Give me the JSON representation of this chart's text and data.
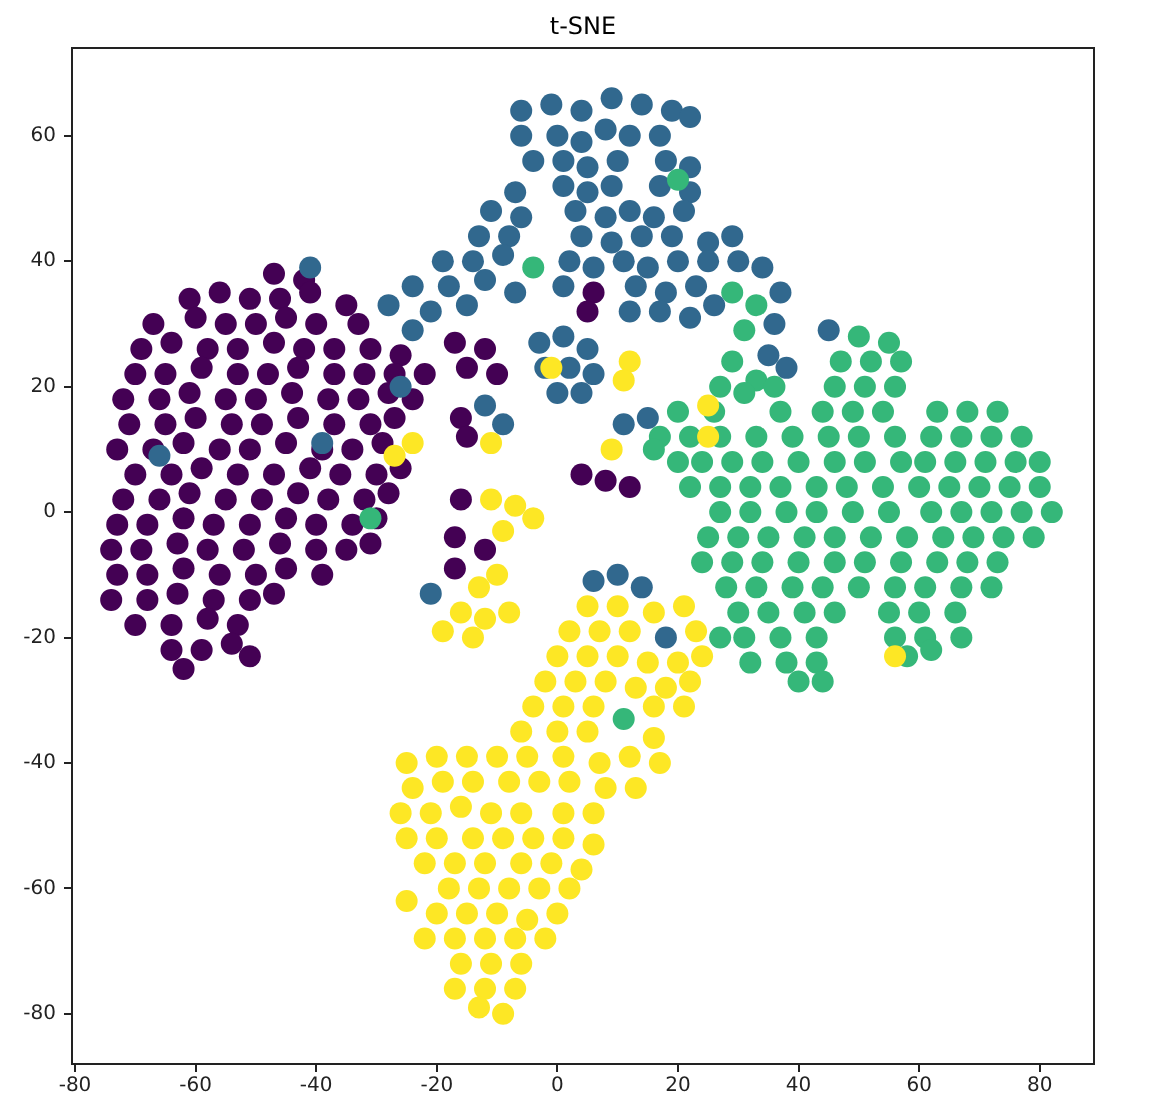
{
  "chart_data": {
    "type": "scatter",
    "title": "t-SNE",
    "marker": "circle",
    "grid": false,
    "legend": false,
    "xlim": [
      -80.5,
      89
    ],
    "ylim": [
      -88,
      74
    ],
    "xticks": [
      -80,
      -60,
      -40,
      -20,
      0,
      20,
      40,
      60,
      80
    ],
    "yticks": [
      -80,
      -60,
      -40,
      -20,
      0,
      20,
      40,
      60
    ],
    "series": [
      {
        "color": "#440154",
        "x": [
          -47,
          -42,
          -61,
          -56,
          -51,
          -46,
          -41,
          -35,
          -67,
          -60,
          -55,
          -50,
          -45,
          -40,
          -33,
          -69,
          -64,
          -58,
          -53,
          -47,
          -42,
          -37,
          -31,
          -26,
          -17,
          -12,
          -70,
          -65,
          -59,
          -53,
          -48,
          -43,
          -37,
          -32,
          -27,
          -22,
          -15,
          -10,
          -72,
          -66,
          -61,
          -55,
          -50,
          -44,
          -38,
          -33,
          -28,
          -24,
          -71,
          -65,
          -60,
          -54,
          -49,
          -43,
          -37,
          -31,
          -27,
          -73,
          -67,
          -62,
          -56,
          -51,
          -45,
          -39,
          -34,
          -29,
          -70,
          -64,
          -59,
          -53,
          -47,
          -41,
          -36,
          -30,
          -26,
          -72,
          -66,
          -61,
          -55,
          -49,
          -43,
          -38,
          -32,
          -28,
          -73,
          -68,
          -62,
          -57,
          -51,
          -45,
          -40,
          -34,
          -30,
          -74,
          -69,
          -63,
          -58,
          -52,
          -46,
          -40,
          -35,
          -31,
          -73,
          -68,
          -62,
          -56,
          -50,
          -45,
          -39,
          -74,
          -68,
          -63,
          -57,
          -51,
          -47,
          -70,
          -64,
          -58,
          -53,
          -64,
          -59,
          -54,
          -51,
          -62,
          -16,
          -15,
          -16,
          -17,
          -17,
          -12,
          4,
          8,
          12,
          6,
          5
        ],
        "values": [
          38,
          37,
          34,
          35,
          34,
          34,
          35,
          33,
          30,
          31,
          30,
          30,
          31,
          30,
          30,
          26,
          27,
          26,
          26,
          27,
          26,
          26,
          26,
          25,
          27,
          26,
          22,
          22,
          23,
          22,
          22,
          23,
          22,
          22,
          22,
          22,
          23,
          22,
          18,
          18,
          19,
          18,
          18,
          19,
          18,
          18,
          19,
          18,
          14,
          14,
          15,
          14,
          14,
          15,
          14,
          14,
          15,
          10,
          10,
          11,
          10,
          10,
          11,
          10,
          10,
          11,
          6,
          6,
          7,
          6,
          6,
          7,
          6,
          6,
          7,
          2,
          2,
          3,
          2,
          2,
          3,
          2,
          2,
          3,
          -2,
          -2,
          -1,
          -2,
          -2,
          -1,
          -2,
          -2,
          -1,
          -6,
          -6,
          -5,
          -6,
          -6,
          -5,
          -6,
          -6,
          -5,
          -10,
          -10,
          -9,
          -10,
          -10,
          -9,
          -10,
          -14,
          -14,
          -13,
          -14,
          -14,
          -13,
          -18,
          -18,
          -17,
          -18,
          -22,
          -22,
          -21,
          -23,
          -25,
          15,
          12,
          2,
          -4,
          -9,
          -6,
          6,
          5,
          4,
          35,
          32
        ]
      },
      {
        "color": "#31688e",
        "x": [
          -6,
          -1,
          4,
          9,
          14,
          19,
          22,
          -6,
          0,
          4,
          8,
          12,
          17,
          -4,
          1,
          5,
          10,
          18,
          22,
          -7,
          1,
          5,
          9,
          17,
          22,
          -11,
          -6,
          3,
          8,
          12,
          16,
          21,
          -13,
          -8,
          4,
          9,
          14,
          19,
          25,
          29,
          -19,
          -14,
          -9,
          2,
          6,
          11,
          15,
          20,
          25,
          30,
          34,
          -24,
          -18,
          -12,
          -7,
          1,
          13,
          18,
          23,
          37,
          -28,
          -21,
          -15,
          12,
          17,
          22,
          26,
          -24,
          -3,
          1,
          5,
          -2,
          2,
          6,
          0,
          4,
          36,
          35,
          38,
          -66,
          -12,
          -9,
          11,
          15,
          6,
          10,
          14,
          18,
          45,
          -41,
          -26,
          -39,
          -21
        ],
        "values": [
          64,
          65,
          64,
          66,
          65,
          64,
          63,
          60,
          60,
          59,
          61,
          60,
          60,
          56,
          56,
          55,
          56,
          56,
          55,
          51,
          52,
          51,
          52,
          52,
          51,
          48,
          47,
          48,
          47,
          48,
          47,
          48,
          44,
          44,
          44,
          43,
          44,
          44,
          43,
          44,
          40,
          40,
          41,
          40,
          39,
          40,
          39,
          40,
          40,
          40,
          39,
          36,
          36,
          37,
          35,
          36,
          36,
          35,
          36,
          35,
          33,
          32,
          33,
          32,
          32,
          31,
          33,
          29,
          27,
          28,
          26,
          23,
          23,
          22,
          19,
          19,
          30,
          25,
          23,
          9,
          17,
          14,
          14,
          15,
          -11,
          -10,
          -12,
          -20,
          29,
          39,
          20,
          11,
          -13
        ]
      },
      {
        "color": "#35b779",
        "x": [
          29,
          33,
          31,
          29,
          33,
          50,
          55,
          47,
          52,
          57,
          27,
          31,
          36,
          46,
          51,
          56,
          20,
          26,
          37,
          44,
          49,
          54,
          63,
          68,
          73,
          17,
          22,
          27,
          33,
          39,
          45,
          50,
          56,
          62,
          67,
          72,
          77,
          20,
          24,
          29,
          34,
          40,
          46,
          51,
          57,
          61,
          66,
          71,
          76,
          80,
          22,
          27,
          32,
          37,
          43,
          48,
          54,
          60,
          65,
          70,
          75,
          80,
          27,
          32,
          38,
          43,
          49,
          55,
          62,
          67,
          72,
          77,
          82,
          25,
          30,
          35,
          41,
          46,
          52,
          58,
          64,
          69,
          74,
          79,
          24,
          29,
          34,
          40,
          46,
          51,
          57,
          63,
          68,
          73,
          28,
          33,
          39,
          44,
          50,
          56,
          61,
          67,
          72,
          30,
          35,
          41,
          46,
          55,
          60,
          66,
          31,
          37,
          43,
          56,
          61,
          67,
          32,
          38,
          43,
          58,
          62,
          40,
          44,
          -4,
          -31,
          20,
          11,
          27,
          16
        ],
        "values": [
          35,
          33,
          29,
          24,
          21,
          28,
          27,
          24,
          24,
          24,
          20,
          19,
          20,
          20,
          20,
          20,
          16,
          16,
          16,
          16,
          16,
          16,
          16,
          16,
          16,
          12,
          12,
          12,
          12,
          12,
          12,
          12,
          12,
          12,
          12,
          12,
          12,
          8,
          8,
          8,
          8,
          8,
          8,
          8,
          8,
          8,
          8,
          8,
          8,
          8,
          4,
          4,
          4,
          4,
          4,
          4,
          4,
          4,
          4,
          4,
          4,
          4,
          0,
          0,
          0,
          0,
          0,
          0,
          0,
          0,
          0,
          0,
          0,
          -4,
          -4,
          -4,
          -4,
          -4,
          -4,
          -4,
          -4,
          -4,
          -4,
          -4,
          -8,
          -8,
          -8,
          -8,
          -8,
          -8,
          -8,
          -8,
          -8,
          -8,
          -12,
          -12,
          -12,
          -12,
          -12,
          -12,
          -12,
          -12,
          -12,
          -16,
          -16,
          -16,
          -16,
          -16,
          -16,
          -16,
          -20,
          -20,
          -20,
          -20,
          -20,
          -20,
          -24,
          -24,
          -24,
          -23,
          -22,
          -27,
          -27,
          39,
          -1,
          53,
          -33,
          -20,
          10
        ]
      },
      {
        "color": "#fde725",
        "x": [
          -24,
          -27,
          -11,
          -1,
          12,
          11,
          9,
          25,
          25,
          56,
          -11,
          -7,
          -4,
          -9,
          -13,
          -10,
          -16,
          -12,
          -8,
          -19,
          -14,
          5,
          10,
          16,
          21,
          2,
          7,
          12,
          23,
          0,
          5,
          10,
          15,
          20,
          24,
          -2,
          3,
          8,
          13,
          18,
          22,
          -4,
          1,
          6,
          16,
          21,
          -6,
          0,
          5,
          16,
          -25,
          -20,
          -15,
          -10,
          -5,
          1,
          7,
          12,
          17,
          -24,
          -19,
          -14,
          -8,
          -3,
          2,
          8,
          13,
          -26,
          -21,
          -16,
          -11,
          -6,
          1,
          6,
          -25,
          -20,
          -14,
          -9,
          -4,
          1,
          6,
          -22,
          -17,
          -12,
          -6,
          -1,
          4,
          -18,
          -13,
          -8,
          -3,
          2,
          -25,
          -20,
          -15,
          -10,
          -5,
          0,
          -22,
          -17,
          -12,
          -7,
          -2,
          -16,
          -11,
          -6,
          -17,
          -12,
          -7,
          -13,
          -9
        ],
        "values": [
          11,
          9,
          11,
          23,
          24,
          21,
          10,
          17,
          12,
          -23,
          2,
          1,
          -1,
          -3,
          -12,
          -10,
          -16,
          -17,
          -16,
          -19,
          -20,
          -15,
          -15,
          -16,
          -15,
          -19,
          -19,
          -19,
          -19,
          -23,
          -23,
          -23,
          -24,
          -24,
          -23,
          -27,
          -27,
          -27,
          -28,
          -28,
          -27,
          -31,
          -31,
          -31,
          -31,
          -31,
          -35,
          -35,
          -35,
          -36,
          -40,
          -39,
          -39,
          -39,
          -39,
          -39,
          -40,
          -39,
          -40,
          -44,
          -43,
          -43,
          -43,
          -43,
          -43,
          -44,
          -44,
          -48,
          -48,
          -47,
          -48,
          -48,
          -48,
          -48,
          -52,
          -52,
          -52,
          -52,
          -52,
          -52,
          -53,
          -56,
          -56,
          -56,
          -56,
          -56,
          -57,
          -60,
          -60,
          -60,
          -60,
          -60,
          -62,
          -64,
          -64,
          -64,
          -65,
          -64,
          -68,
          -68,
          -68,
          -68,
          -68,
          -72,
          -72,
          -72,
          -76,
          -76,
          -76,
          -79,
          -80
        ]
      }
    ]
  }
}
